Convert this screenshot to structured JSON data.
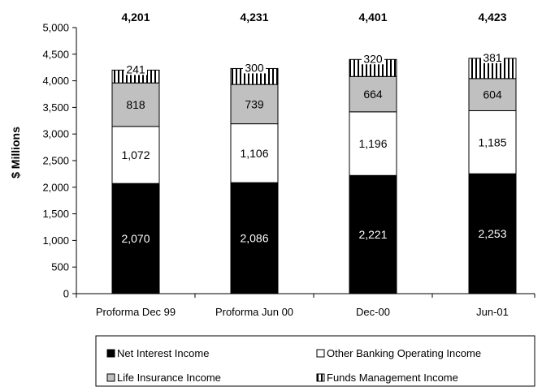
{
  "chart_data": {
    "type": "bar",
    "stacked": true,
    "ylabel": "$ Millions",
    "ylim": [
      0,
      5000
    ],
    "ytick_step": 500,
    "grid": false,
    "legend_position": "bottom",
    "categories": [
      "Proforma Dec 99",
      "Proforma Jun 00",
      "Dec-00",
      "Jun-01"
    ],
    "totals": [
      4201,
      4231,
      4401,
      4423
    ],
    "total_labels": [
      "4,201",
      "4,231",
      "4,401",
      "4,423"
    ],
    "series": [
      {
        "name": "Net Interest Income",
        "values": [
          2070,
          2086,
          2221,
          2253
        ],
        "labels": [
          "2,070",
          "2,086",
          "2,221",
          "2,253"
        ],
        "color": "#000000",
        "pattern": "solid",
        "label_color": "#ffffff"
      },
      {
        "name": "Other Banking Operating Income",
        "values": [
          1072,
          1106,
          1196,
          1185
        ],
        "labels": [
          "1,072",
          "1,106",
          "1,196",
          "1,185"
        ],
        "color": "#ffffff",
        "pattern": "solid",
        "label_color": "#000000"
      },
      {
        "name": "Life Insurance Income",
        "values": [
          818,
          739,
          664,
          604
        ],
        "labels": [
          "818",
          "739",
          "664",
          "604"
        ],
        "color": "#c0c0c0",
        "pattern": "solid",
        "label_color": "#000000"
      },
      {
        "name": "Funds Management Income",
        "values": [
          241,
          300,
          320,
          381
        ],
        "labels": [
          "241",
          "300",
          "320",
          "381"
        ],
        "color": "#ffffff",
        "pattern": "vertical-stripes",
        "label_color": "#000000"
      }
    ]
  }
}
